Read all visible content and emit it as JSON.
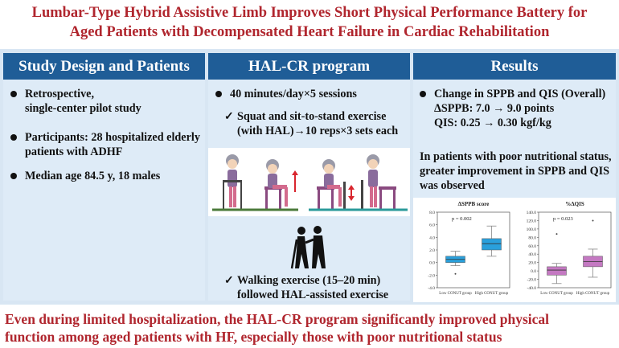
{
  "title": {
    "line1": "Lumbar-Type Hybrid Assistive Limb Improves Short Physical Performance Battery for",
    "line2": "Aged Patients with Decompensated Heart Failure in Cardiac Rehabilitation"
  },
  "panel1": {
    "header": "Study Design and Patients",
    "b1_line1": "Retrospective,",
    "b1_line2": "single-center pilot study",
    "b2_line1": "Participants: 28 hospitalized elderly",
    "b2_line2": "patients with ADHF",
    "b3": "Median age 84.5 y, 18 males"
  },
  "panel2": {
    "header": "HAL-CR program",
    "b1": "40 minutes/day×5 sessions",
    "c1_line1": "Squat and sit-to-stand exercise",
    "c1_line2": "(with HAL)→10 reps×3 sets each",
    "c2_line1": "Walking exercise (15–20 min)",
    "c2_line2": "followed HAL-assisted exercise",
    "check_glyph": "✓"
  },
  "panel3": {
    "header": "Results",
    "b1_line1": "Change in SPPB and QIS (Overall)",
    "b1_line2": "ΔSPPB: 7.0 → 9.0 points",
    "b1_line3": "QIS: 0.25 → 0.30 kgf/kg",
    "p_line1": "In patients with poor nutritional status,",
    "p_line2": "greater improvement in SPPB and QIS",
    "p_line3": "was observed"
  },
  "footer": {
    "line1": "Even during limited hospitalization, the HAL-CR program significantly improved physical",
    "line2": "function among aged patients with HF, especially those with poor nutritional status"
  },
  "colors": {
    "title_red": "#b0262e",
    "header_blue": "#1f5d97",
    "box_blue": "#2aa0dc",
    "box_purple": "#c479c2"
  },
  "chart_data": [
    {
      "type": "boxplot",
      "title": "ΔSPPB score",
      "annotation": "p = 0.002",
      "categories": [
        "Low CONUT group",
        "High CONUT group"
      ],
      "yticks": [
        "8.0",
        "6.0",
        "4.0",
        "2.0",
        "0.0",
        "-2.0",
        "-4.0"
      ],
      "ylim": [
        -4,
        8
      ],
      "boxes": [
        {
          "q1": 0.0,
          "median": 0.5,
          "q3": 1.0,
          "whisker_low": -0.5,
          "whisker_high": 1.8,
          "outliers": [
            -1.8
          ]
        },
        {
          "q1": 2.0,
          "median": 3.0,
          "q3": 3.8,
          "whisker_low": 1.0,
          "whisker_high": 5.8,
          "outliers": []
        }
      ]
    },
    {
      "type": "boxplot",
      "title": "%ΔQIS",
      "annotation": "p = 0.023",
      "categories": [
        "Low CONUT group",
        "High CONUT group"
      ],
      "yticks": [
        "140.0",
        "120.0",
        "100.0",
        "80.0",
        "60.0",
        "40.0",
        "20.0",
        "0.0",
        "-20.0",
        "-40.0"
      ],
      "ylim": [
        -40,
        140
      ],
      "boxes": [
        {
          "q1": -10,
          "median": 2,
          "q3": 10,
          "whisker_low": -30,
          "whisker_high": 18,
          "outliers": [
            88
          ]
        },
        {
          "q1": 10,
          "median": 22,
          "q3": 35,
          "whisker_low": -15,
          "whisker_high": 52,
          "outliers": [
            120
          ]
        }
      ]
    }
  ]
}
